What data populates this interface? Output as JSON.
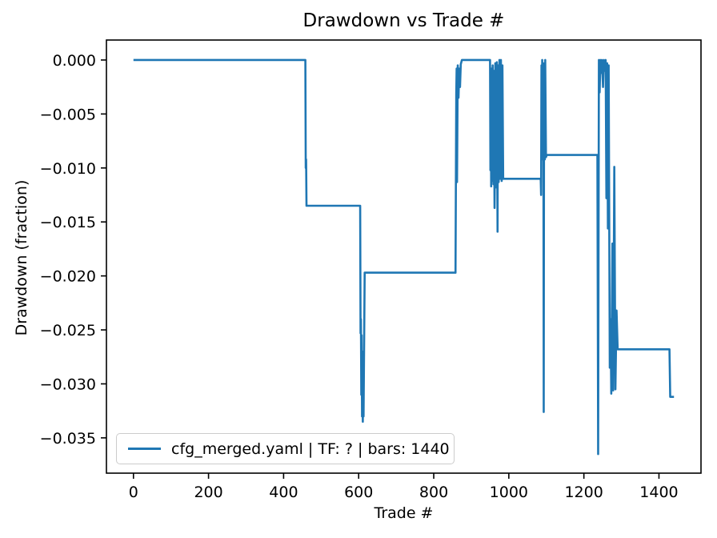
{
  "chart_data": {
    "type": "line",
    "title": "Drawdown vs Trade #",
    "xlabel": "Trade #",
    "ylabel": "Drawdown (fraction)",
    "grid": false,
    "legend_position": "lower left",
    "xlim": [
      -72,
      1512
    ],
    "ylim": [
      -0.03827,
      0.00185
    ],
    "x_tick_values": [
      0,
      200,
      400,
      600,
      800,
      1000,
      1200,
      1400
    ],
    "x_tick_labels": [
      "0",
      "200",
      "400",
      "600",
      "800",
      "1000",
      "1200",
      "1400"
    ],
    "y_tick_values": [
      0.0,
      -0.005,
      -0.01,
      -0.015,
      -0.02,
      -0.025,
      -0.03,
      -0.035
    ],
    "y_tick_labels": [
      "0.000",
      "−0.005",
      "−0.010",
      "−0.015",
      "−0.020",
      "−0.025",
      "−0.030",
      "−0.035"
    ],
    "style": {
      "line_color": "#1f77b4",
      "line_width": 2.6,
      "spine_color": "#000000",
      "spine_width": 1.6,
      "legend_border_color": "#cccccc",
      "background": "#ffffff"
    },
    "series": [
      {
        "name": "cfg_merged.yaml | TF: ? | bars: 1440",
        "color": "#1f77b4",
        "points": [
          [
            0,
            0
          ],
          [
            458,
            0
          ],
          [
            459,
            -0.01
          ],
          [
            460,
            -0.0092
          ],
          [
            461,
            -0.0135
          ],
          [
            604,
            -0.0135
          ],
          [
            605,
            -0.0253
          ],
          [
            606,
            -0.024
          ],
          [
            607,
            -0.031
          ],
          [
            608,
            -0.0255
          ],
          [
            609,
            -0.033
          ],
          [
            610,
            -0.027
          ],
          [
            611,
            -0.0335
          ],
          [
            612,
            -0.03
          ],
          [
            613,
            -0.033
          ],
          [
            616,
            -0.0197
          ],
          [
            858,
            -0.0197
          ],
          [
            860,
            -0.0031
          ],
          [
            861,
            -0.0008
          ],
          [
            862,
            -0.0113
          ],
          [
            864,
            -0.0005
          ],
          [
            866,
            -0.0035
          ],
          [
            868,
            -0.0008
          ],
          [
            870,
            -0.0025
          ],
          [
            872,
            -0.0004
          ],
          [
            875,
            0
          ],
          [
            950,
            0
          ],
          [
            951,
            -0.0102
          ],
          [
            952,
            -0.0027
          ],
          [
            953,
            -0.0117
          ],
          [
            954,
            -0.0008
          ],
          [
            956,
            -0.0112
          ],
          [
            957,
            -0.0005
          ],
          [
            959,
            -0.0115
          ],
          [
            960,
            -0.001
          ],
          [
            962,
            -0.0137
          ],
          [
            963,
            -0.01
          ],
          [
            964,
            -0.0003
          ],
          [
            966,
            -0.0118
          ],
          [
            968,
            -0.0002
          ],
          [
            970,
            -0.0159
          ],
          [
            971,
            -0.0005
          ],
          [
            973,
            -0.0113
          ],
          [
            975,
            0
          ],
          [
            977,
            -0.011
          ],
          [
            979,
            0
          ],
          [
            981,
            -0.0112
          ],
          [
            983,
            -0.0005
          ],
          [
            985,
            -0.011
          ],
          [
            1085,
            -0.011
          ],
          [
            1086,
            -0.0125
          ],
          [
            1087,
            -0.0005
          ],
          [
            1088,
            -0.0092
          ],
          [
            1089,
            0
          ],
          [
            1091,
            -0.009
          ],
          [
            1092,
            -0.0003
          ],
          [
            1093,
            -0.0326
          ],
          [
            1094,
            -0.0005
          ],
          [
            1096,
            -0.0092
          ],
          [
            1097,
            0
          ],
          [
            1099,
            -0.009
          ],
          [
            1101,
            -0.0088
          ],
          [
            1236,
            -0.0088
          ],
          [
            1238,
            -0.0365
          ],
          [
            1240,
            0
          ],
          [
            1242,
            -0.003
          ],
          [
            1244,
            0
          ],
          [
            1246,
            -0.0012
          ],
          [
            1248,
            0
          ],
          [
            1251,
            -0.0025
          ],
          [
            1253,
            0
          ],
          [
            1256,
            -0.001
          ],
          [
            1258,
            0
          ],
          [
            1260,
            -0.0128
          ],
          [
            1262,
            -0.0003
          ],
          [
            1264,
            -0.0156
          ],
          [
            1266,
            -0.0005
          ],
          [
            1269,
            -0.0285
          ],
          [
            1271,
            -0.024
          ],
          [
            1273,
            -0.0309
          ],
          [
            1276,
            -0.017
          ],
          [
            1278,
            -0.0306
          ],
          [
            1281,
            -0.0099
          ],
          [
            1284,
            -0.0305
          ],
          [
            1287,
            -0.0232
          ],
          [
            1290,
            -0.0268
          ],
          [
            1428,
            -0.0268
          ],
          [
            1430,
            -0.0312
          ],
          [
            1440,
            -0.0312
          ]
        ]
      }
    ]
  },
  "legend": {
    "label": "cfg_merged.yaml | TF: ? | bars: 1440"
  }
}
